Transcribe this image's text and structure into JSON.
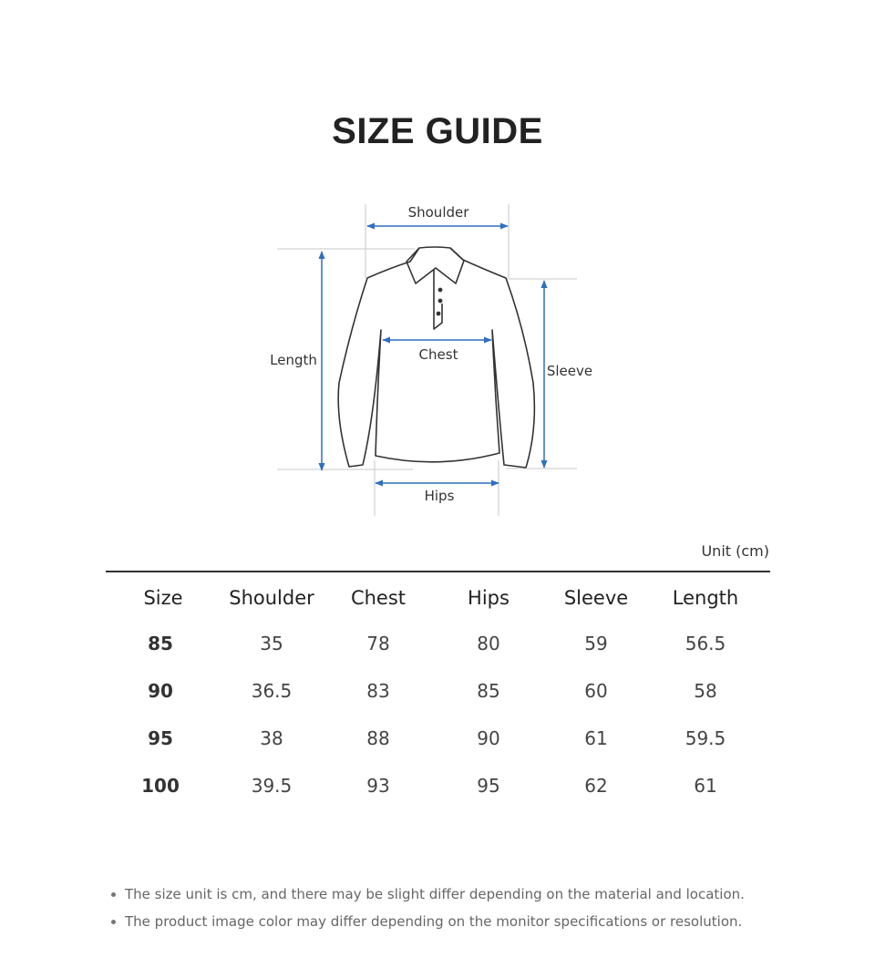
{
  "title": "SIZE GUIDE",
  "diagram": {
    "labels": {
      "shoulder": "Shoulder",
      "chest": "Chest",
      "length": "Length",
      "sleeve": "Sleeve",
      "hips": "Hips"
    },
    "arrow_color": "#2f6fc0"
  },
  "table": {
    "unit": "Unit (cm)",
    "headers": [
      "Size",
      "Shoulder",
      "Chest",
      "Hips",
      "Sleeve",
      "Length"
    ],
    "rows": [
      [
        "85",
        "35",
        "78",
        "80",
        "59",
        "56.5"
      ],
      [
        "90",
        "36.5",
        "83",
        "85",
        "60",
        "58"
      ],
      [
        "95",
        "38",
        "88",
        "90",
        "61",
        "59.5"
      ],
      [
        "100",
        "39.5",
        "93",
        "95",
        "62",
        "61"
      ]
    ]
  },
  "notes": [
    "The size unit is cm, and there may be slight differ depending on the material and location.",
    "The product image color may differ depending on the monitor specifications or resolution."
  ]
}
